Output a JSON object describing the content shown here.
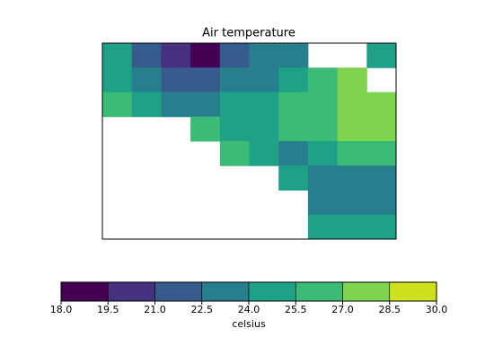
{
  "chart_data": {
    "type": "filled-contour",
    "title": "Air temperature",
    "z": [
      [
        25,
        22,
        20,
        19,
        22,
        23,
        24,
        null,
        null,
        25
      ],
      [
        25,
        23,
        22,
        22,
        23,
        24,
        25,
        26,
        28,
        null
      ],
      [
        27,
        25,
        23,
        24,
        25,
        25,
        26,
        27,
        28,
        28
      ],
      [
        null,
        null,
        null,
        27,
        25,
        25,
        26,
        27,
        28,
        28
      ],
      [
        null,
        null,
        null,
        null,
        26,
        25,
        24,
        25,
        26,
        27
      ],
      [
        null,
        null,
        null,
        null,
        null,
        null,
        25,
        24,
        24,
        24
      ],
      [
        null,
        null,
        null,
        null,
        null,
        null,
        null,
        24,
        23,
        24
      ],
      [
        null,
        null,
        null,
        null,
        null,
        null,
        null,
        25,
        25,
        25
      ]
    ],
    "colorbar": {
      "label": "celsius",
      "ticks": [
        {
          "value": 18,
          "label": "18.0"
        },
        {
          "value": 19.5,
          "label": "19.5"
        },
        {
          "value": 21,
          "label": "21.0"
        },
        {
          "value": 22.5,
          "label": "22.5"
        },
        {
          "value": 24,
          "label": "24.0"
        },
        {
          "value": 25.5,
          "label": "25.5"
        },
        {
          "value": 27,
          "label": "27.0"
        },
        {
          "value": 28.5,
          "label": "28.5"
        },
        {
          "value": 30,
          "label": "30.0"
        }
      ],
      "colors": [
        "#440154",
        "#46317e",
        "#365c8d",
        "#277f8e",
        "#1fa187",
        "#3bbb75",
        "#7ed34f",
        "#cde11d"
      ]
    }
  }
}
